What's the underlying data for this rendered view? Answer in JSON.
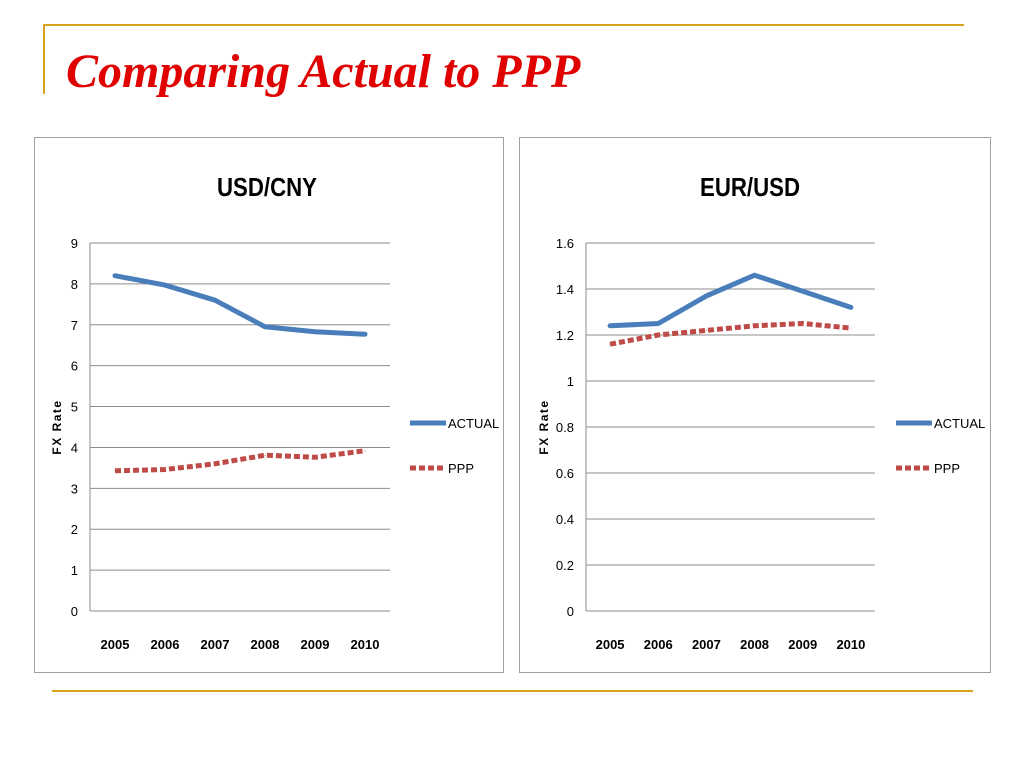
{
  "slide": {
    "title": "Comparing Actual to PPP"
  },
  "colors": {
    "accent": "#d9a21b",
    "title": "#e00000",
    "actual": "#4a7ebb",
    "ppp": "#be4b48"
  },
  "chart_data": [
    {
      "type": "line",
      "title": "USD/CNY",
      "xlabel": "",
      "ylabel": "FX Rate",
      "categories": [
        "2005",
        "2006",
        "2007",
        "2008",
        "2009",
        "2010"
      ],
      "ylim": [
        0,
        9
      ],
      "yticks": [
        "0",
        "1",
        "2",
        "3",
        "4",
        "5",
        "6",
        "7",
        "8",
        "9"
      ],
      "grid": true,
      "legend_position": "right",
      "series": [
        {
          "name": "ACTUAL",
          "style": "solid",
          "values": [
            8.2,
            7.97,
            7.6,
            6.95,
            6.83,
            6.77
          ]
        },
        {
          "name": "PPP",
          "style": "dashed",
          "values": [
            3.43,
            3.46,
            3.6,
            3.81,
            3.76,
            3.92
          ]
        }
      ]
    },
    {
      "type": "line",
      "title": "EUR/USD",
      "xlabel": "",
      "ylabel": "FX Rate",
      "categories": [
        "2005",
        "2006",
        "2007",
        "2008",
        "2009",
        "2010"
      ],
      "ylim": [
        0,
        1.6
      ],
      "yticks": [
        "0",
        "0.2",
        "0.4",
        "0.6",
        "0.8",
        "1",
        "1.2",
        "1.4",
        "1.6"
      ],
      "grid": true,
      "legend_position": "right",
      "series": [
        {
          "name": "ACTUAL",
          "style": "solid",
          "values": [
            1.24,
            1.25,
            1.37,
            1.46,
            1.39,
            1.32
          ]
        },
        {
          "name": "PPP",
          "style": "dashed",
          "values": [
            1.16,
            1.2,
            1.22,
            1.24,
            1.25,
            1.23
          ]
        }
      ]
    }
  ]
}
